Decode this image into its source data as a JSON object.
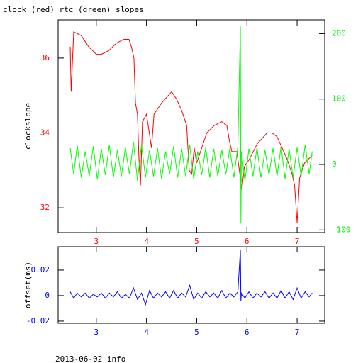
{
  "chart_data": [
    {
      "type": "line",
      "title": "clock (red) rtc (green) slopes",
      "ylabel": "clockslope",
      "xlim": [
        2.24,
        7.55
      ],
      "xticks": [
        3,
        4,
        5,
        6,
        7
      ],
      "xtick_color": "#ff0000",
      "ylim": [
        31.34,
        37.02
      ],
      "yticks": [
        32,
        34,
        36
      ],
      "ytick_color": "#ff0000",
      "y2lim": [
        -104,
        221
      ],
      "y2ticks": [
        -100,
        0,
        100,
        200
      ],
      "y2tick_color": "#00ee00",
      "series": [
        {
          "name": "clock",
          "color": "#ff0000",
          "x": [
            2.48,
            2.5,
            2.55,
            2.7,
            2.85,
            3.0,
            3.1,
            3.25,
            3.4,
            3.55,
            3.65,
            3.7,
            3.75,
            3.78,
            3.82,
            3.85,
            3.88,
            3.92,
            4.0,
            4.1,
            4.15,
            4.3,
            4.5,
            4.6,
            4.7,
            4.8,
            4.85,
            4.9,
            4.95,
            5.0,
            5.1,
            5.2,
            5.35,
            5.5,
            5.6,
            5.65,
            5.7,
            5.8,
            5.9,
            5.95,
            6.05,
            6.2,
            6.4,
            6.5,
            6.6,
            6.7,
            6.8,
            6.9,
            6.95,
            7.0,
            7.05,
            7.15,
            7.3
          ],
          "values": [
            36.3,
            35.1,
            36.7,
            36.6,
            36.3,
            36.1,
            36.1,
            36.2,
            36.4,
            36.5,
            36.5,
            36.3,
            36.0,
            34.8,
            34.5,
            33.3,
            32.6,
            34.3,
            34.5,
            33.6,
            34.5,
            34.8,
            35.1,
            34.9,
            34.6,
            34.2,
            33.0,
            32.9,
            33.6,
            33.2,
            33.6,
            34.0,
            34.2,
            34.3,
            34.2,
            33.8,
            33.5,
            33.5,
            32.5,
            33.1,
            33.3,
            33.7,
            34.0,
            34.0,
            33.9,
            33.6,
            33.3,
            32.9,
            32.6,
            31.6,
            32.8,
            33.2,
            33.4
          ]
        },
        {
          "name": "rtc",
          "color": "#00ff00",
          "axis": "y2",
          "x": [
            2.48,
            2.55,
            2.62,
            2.7,
            2.78,
            2.86,
            2.94,
            3.02,
            3.1,
            3.18,
            3.26,
            3.34,
            3.42,
            3.5,
            3.58,
            3.66,
            3.74,
            3.82,
            3.9,
            3.98,
            4.06,
            4.14,
            4.22,
            4.3,
            4.38,
            4.46,
            4.54,
            4.62,
            4.7,
            4.78,
            4.86,
            4.94,
            5.02,
            5.1,
            5.18,
            5.26,
            5.34,
            5.42,
            5.5,
            5.58,
            5.66,
            5.74,
            5.82,
            5.87,
            5.88,
            5.89,
            5.96,
            6.04,
            6.12,
            6.2,
            6.28,
            6.36,
            6.44,
            6.52,
            6.6,
            6.68,
            6.76,
            6.84,
            6.92,
            7.0,
            7.08,
            7.16,
            7.24,
            7.3
          ],
          "values": [
            25,
            -15,
            30,
            -20,
            20,
            -18,
            28,
            -22,
            24,
            -16,
            30,
            -20,
            22,
            -18,
            26,
            -15,
            35,
            -25,
            30,
            -20,
            22,
            -18,
            25,
            -22,
            20,
            -15,
            28,
            -20,
            24,
            -18,
            30,
            -22,
            20,
            -16,
            26,
            -20,
            24,
            -18,
            22,
            -15,
            25,
            -20,
            28,
            212,
            -90,
            20,
            -25,
            24,
            -18,
            26,
            -20,
            22,
            -16,
            25,
            -18,
            28,
            -22,
            24,
            -20,
            26,
            -18,
            30,
            -15,
            20
          ]
        }
      ]
    },
    {
      "type": "line",
      "ylabel": "offset(ms)",
      "xlim": [
        2.24,
        7.55
      ],
      "xticks": [
        3,
        4,
        5,
        6,
        7
      ],
      "xtick_color": "#0000ff",
      "ylim": [
        -0.0217,
        0.0383
      ],
      "yticks": [
        -0.02,
        0,
        0.02
      ],
      "ytick_color": "#0000ff",
      "series": [
        {
          "name": "offset",
          "color": "#0000ff",
          "x": [
            2.48,
            2.55,
            2.62,
            2.7,
            2.78,
            2.86,
            2.94,
            3.02,
            3.1,
            3.18,
            3.26,
            3.34,
            3.42,
            3.5,
            3.58,
            3.66,
            3.74,
            3.82,
            3.9,
            3.98,
            4.06,
            4.14,
            4.22,
            4.3,
            4.38,
            4.46,
            4.54,
            4.62,
            4.7,
            4.78,
            4.86,
            4.94,
            5.02,
            5.1,
            5.18,
            5.26,
            5.34,
            5.42,
            5.5,
            5.58,
            5.66,
            5.74,
            5.82,
            5.87,
            5.88,
            5.89,
            5.96,
            6.04,
            6.12,
            6.2,
            6.28,
            6.36,
            6.44,
            6.52,
            6.6,
            6.68,
            6.76,
            6.84,
            6.92,
            7.0,
            7.08,
            7.16,
            7.24,
            7.3
          ],
          "values": [
            0.003,
            -0.002,
            0.002,
            -0.001,
            0.002,
            -0.002,
            0.001,
            -0.001,
            0.002,
            -0.002,
            0.002,
            -0.001,
            0.003,
            -0.002,
            0.001,
            -0.002,
            0.006,
            -0.003,
            0.002,
            -0.007,
            0.004,
            -0.002,
            0.002,
            -0.001,
            0.003,
            -0.002,
            0.004,
            -0.002,
            0.002,
            -0.001,
            0.008,
            -0.003,
            0.002,
            -0.002,
            0.003,
            -0.001,
            0.002,
            -0.002,
            0.004,
            -0.002,
            0.002,
            -0.001,
            0.003,
            0.036,
            -0.004,
            0.002,
            -0.002,
            0.003,
            -0.002,
            0.002,
            -0.001,
            0.003,
            -0.002,
            0.002,
            -0.002,
            0.004,
            -0.002,
            0.003,
            -0.003,
            0.006,
            -0.002,
            0.003,
            -0.001,
            0.002
          ]
        }
      ]
    }
  ],
  "footer": "2013-06-02 info"
}
